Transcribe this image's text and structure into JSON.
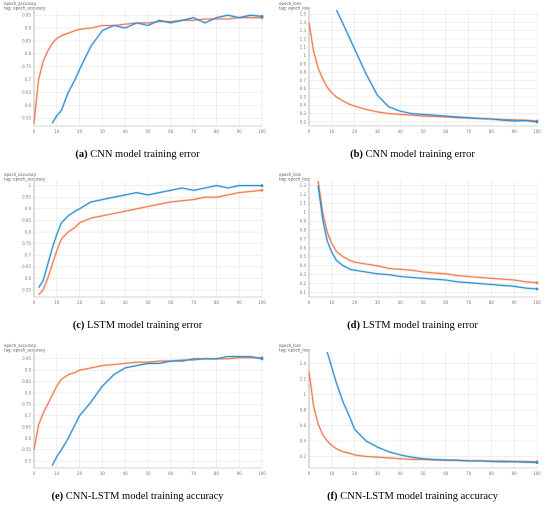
{
  "panels": [
    {
      "letter": "(a)",
      "caption": "CNN model training error",
      "metric": "epoch_accuracy",
      "tag": "tag: epoch_accuracy"
    },
    {
      "letter": "(b)",
      "caption": "CNN model training error",
      "metric": "epoch_loss",
      "tag": "tag: epoch_loss"
    },
    {
      "letter": "(c)",
      "caption": "LSTM model training error",
      "metric": "epoch_accuracy",
      "tag": "tag: epoch_accuracy"
    },
    {
      "letter": "(d)",
      "caption": "LSTM model training error",
      "metric": "epoch_loss",
      "tag": "tag: epoch_loss"
    },
    {
      "letter": "(e)",
      "caption": "CNN-LSTM model training accuracy",
      "metric": "epoch_accuracy",
      "tag": "tag: epoch_accuracy"
    },
    {
      "letter": "(f)",
      "caption": "CNN-LSTM model training accuracy",
      "metric": "epoch_loss",
      "tag": "tag: epoch_loss"
    }
  ],
  "colors": {
    "blue": "#2c8ed0",
    "orange": "#f07a4f",
    "grid": "#e6e6e6",
    "axis": "#aaaaaa"
  },
  "chart_data": [
    {
      "type": "line",
      "title": "epoch_accuracy",
      "x": [
        0,
        2,
        4,
        6,
        8,
        10,
        12,
        15,
        18,
        20,
        25,
        30,
        35,
        40,
        45,
        50,
        55,
        60,
        65,
        70,
        75,
        80,
        85,
        90,
        95,
        100
      ],
      "xticks": [
        0,
        10,
        20,
        30,
        40,
        50,
        60,
        70,
        80,
        90,
        100
      ],
      "yticks": [
        0.55,
        0.6,
        0.65,
        0.7,
        0.75,
        0.8,
        0.85,
        0.9,
        0.95
      ],
      "ylim": [
        0.52,
        0.97
      ],
      "xlim": [
        0,
        100
      ],
      "series": [
        {
          "color": "orange",
          "values": [
            0.53,
            0.7,
            0.77,
            0.81,
            0.84,
            0.86,
            0.87,
            0.88,
            0.89,
            0.895,
            0.9,
            0.91,
            0.91,
            0.915,
            0.92,
            0.92,
            0.925,
            0.925,
            0.93,
            0.93,
            0.935,
            0.935,
            0.935,
            0.94,
            0.94,
            0.94
          ]
        },
        {
          "color": "blue",
          "values": [
            null,
            null,
            null,
            null,
            0.53,
            0.56,
            0.58,
            0.65,
            0.7,
            0.74,
            0.83,
            0.89,
            0.91,
            0.9,
            0.92,
            0.91,
            0.93,
            0.92,
            0.93,
            0.94,
            0.92,
            0.94,
            0.95,
            0.94,
            0.95,
            0.945
          ]
        }
      ]
    },
    {
      "type": "line",
      "title": "epoch_loss",
      "x": [
        0,
        2,
        4,
        6,
        8,
        10,
        12,
        15,
        18,
        20,
        25,
        30,
        35,
        40,
        45,
        50,
        55,
        60,
        65,
        70,
        75,
        80,
        85,
        90,
        95,
        100
      ],
      "xticks": [
        0,
        10,
        20,
        30,
        40,
        50,
        60,
        70,
        80,
        90,
        100
      ],
      "yticks": [
        0.2,
        0.3,
        0.4,
        0.5,
        0.6,
        0.7,
        0.8,
        0.9,
        1,
        1.1,
        1.2,
        1.3,
        1.4,
        1.5
      ],
      "ylim": [
        0.15,
        1.55
      ],
      "xlim": [
        0,
        100
      ],
      "series": [
        {
          "color": "orange",
          "values": [
            1.4,
            1.05,
            0.85,
            0.72,
            0.62,
            0.55,
            0.5,
            0.45,
            0.41,
            0.39,
            0.35,
            0.32,
            0.3,
            0.29,
            0.28,
            0.27,
            0.265,
            0.26,
            0.25,
            0.245,
            0.24,
            0.235,
            0.23,
            0.225,
            0.22,
            0.21
          ]
        },
        {
          "color": "blue",
          "values": [
            null,
            null,
            null,
            null,
            null,
            null,
            1.55,
            1.38,
            1.2,
            1.08,
            0.78,
            0.52,
            0.38,
            0.33,
            0.3,
            0.29,
            0.28,
            0.27,
            0.26,
            0.25,
            0.24,
            0.235,
            0.22,
            0.21,
            0.215,
            0.2
          ]
        }
      ]
    },
    {
      "type": "line",
      "title": "epoch_accuracy",
      "x": [
        0,
        2,
        4,
        6,
        8,
        10,
        12,
        15,
        18,
        20,
        25,
        30,
        35,
        40,
        45,
        50,
        55,
        60,
        65,
        70,
        75,
        80,
        85,
        90,
        95,
        100
      ],
      "xticks": [
        0,
        10,
        20,
        30,
        40,
        50,
        60,
        70,
        80,
        90,
        100
      ],
      "yticks": [
        0.55,
        0.6,
        0.65,
        0.7,
        0.75,
        0.8,
        0.85,
        0.9,
        0.95,
        1
      ],
      "ylim": [
        0.52,
        1.02
      ],
      "xlim": [
        0,
        100
      ],
      "series": [
        {
          "color": "orange",
          "values": [
            null,
            0.53,
            0.55,
            0.6,
            0.66,
            0.72,
            0.77,
            0.8,
            0.82,
            0.84,
            0.86,
            0.87,
            0.88,
            0.89,
            0.9,
            0.91,
            0.92,
            0.93,
            0.935,
            0.94,
            0.95,
            0.95,
            0.96,
            0.97,
            0.975,
            0.98
          ]
        },
        {
          "color": "blue",
          "values": [
            null,
            0.56,
            0.59,
            0.66,
            0.73,
            0.79,
            0.84,
            0.87,
            0.89,
            0.9,
            0.93,
            0.94,
            0.95,
            0.96,
            0.97,
            0.96,
            0.97,
            0.98,
            0.99,
            0.98,
            0.99,
            1.0,
            0.99,
            1.0,
            1.0,
            1.0
          ]
        }
      ]
    },
    {
      "type": "line",
      "title": "epoch_loss",
      "x": [
        0,
        2,
        4,
        6,
        8,
        10,
        12,
        15,
        18,
        20,
        25,
        30,
        35,
        40,
        45,
        50,
        55,
        60,
        65,
        70,
        75,
        80,
        85,
        90,
        95,
        100
      ],
      "xticks": [
        0,
        10,
        20,
        30,
        40,
        50,
        60,
        70,
        80,
        90,
        100
      ],
      "yticks": [
        0.1,
        0.2,
        0.3,
        0.4,
        0.5,
        0.6,
        0.7,
        0.8,
        0.9,
        1,
        1.1,
        1.2,
        1.3
      ],
      "ylim": [
        0.05,
        1.35
      ],
      "xlim": [
        0,
        100
      ],
      "series": [
        {
          "color": "orange",
          "values": [
            null,
            null,
            1.35,
            1.0,
            0.78,
            0.65,
            0.56,
            0.5,
            0.46,
            0.44,
            0.42,
            0.4,
            0.37,
            0.36,
            0.35,
            0.33,
            0.32,
            0.31,
            0.29,
            0.28,
            0.27,
            0.26,
            0.25,
            0.24,
            0.22,
            0.21
          ]
        },
        {
          "color": "blue",
          "values": [
            null,
            null,
            1.3,
            0.92,
            0.68,
            0.55,
            0.46,
            0.4,
            0.36,
            0.35,
            0.33,
            0.31,
            0.3,
            0.28,
            0.27,
            0.26,
            0.25,
            0.24,
            0.22,
            0.21,
            0.2,
            0.19,
            0.18,
            0.17,
            0.15,
            0.14
          ]
        }
      ]
    },
    {
      "type": "line",
      "title": "epoch_accuracy",
      "x": [
        0,
        2,
        4,
        6,
        8,
        10,
        12,
        15,
        18,
        20,
        25,
        30,
        35,
        40,
        45,
        50,
        55,
        60,
        65,
        70,
        75,
        80,
        85,
        90,
        95,
        100
      ],
      "xticks": [
        0,
        10,
        20,
        30,
        40,
        50,
        60,
        70,
        80,
        90,
        100
      ],
      "yticks": [
        0.5,
        0.55,
        0.6,
        0.65,
        0.7,
        0.75,
        0.8,
        0.85,
        0.9,
        0.95
      ],
      "ylim": [
        0.47,
        0.98
      ],
      "xlim": [
        0,
        100
      ],
      "series": [
        {
          "color": "orange",
          "values": [
            0.55,
            0.66,
            0.71,
            0.75,
            0.79,
            0.83,
            0.86,
            0.88,
            0.89,
            0.9,
            0.91,
            0.92,
            0.925,
            0.93,
            0.935,
            0.935,
            0.94,
            0.94,
            0.945,
            0.945,
            0.95,
            0.95,
            0.95,
            0.955,
            0.955,
            0.955
          ]
        },
        {
          "color": "blue",
          "values": [
            null,
            null,
            null,
            null,
            0.48,
            0.52,
            0.55,
            0.6,
            0.66,
            0.7,
            0.76,
            0.83,
            0.88,
            0.91,
            0.92,
            0.93,
            0.93,
            0.94,
            0.94,
            0.95,
            0.95,
            0.95,
            0.96,
            0.96,
            0.96,
            0.95
          ]
        }
      ]
    },
    {
      "type": "line",
      "title": "epoch_loss",
      "x": [
        0,
        2,
        4,
        6,
        8,
        10,
        12,
        15,
        18,
        20,
        25,
        30,
        35,
        40,
        45,
        50,
        55,
        60,
        65,
        70,
        75,
        80,
        85,
        90,
        95,
        100
      ],
      "xticks": [
        0,
        10,
        20,
        30,
        40,
        50,
        60,
        70,
        80,
        90,
        100
      ],
      "yticks": [
        0.2,
        0.4,
        0.6,
        0.8,
        1,
        1.2,
        1.4
      ],
      "ylim": [
        0.05,
        1.55
      ],
      "xlim": [
        0,
        100
      ],
      "series": [
        {
          "color": "orange",
          "values": [
            1.3,
            0.85,
            0.62,
            0.48,
            0.4,
            0.34,
            0.3,
            0.26,
            0.24,
            0.22,
            0.2,
            0.19,
            0.18,
            0.17,
            0.16,
            0.16,
            0.155,
            0.15,
            0.15,
            0.145,
            0.145,
            0.14,
            0.14,
            0.135,
            0.135,
            0.13
          ]
        },
        {
          "color": "blue",
          "values": [
            null,
            null,
            null,
            null,
            1.55,
            1.35,
            1.15,
            0.9,
            0.7,
            0.55,
            0.4,
            0.32,
            0.26,
            0.22,
            0.19,
            0.17,
            0.16,
            0.155,
            0.15,
            0.14,
            0.14,
            0.135,
            0.13,
            0.13,
            0.125,
            0.12
          ]
        }
      ]
    }
  ]
}
